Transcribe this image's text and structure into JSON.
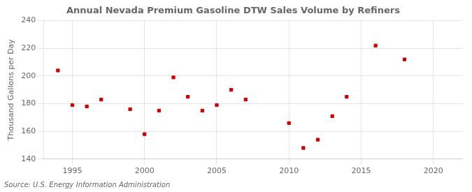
{
  "chart_data": {
    "type": "scatter",
    "title": "Annual Nevada Premium Gasoline DTW Sales Volume by Refiners",
    "y_label": "Thousand Gallons per Day",
    "annotations": [
      "Source: U.S. Energy Information Administration"
    ],
    "x": [
      1994,
      1995,
      1996,
      1997,
      1999,
      2000,
      2001,
      2002,
      2003,
      2004,
      2005,
      2006,
      2007,
      2010,
      2011,
      2012,
      2013,
      2014,
      2016,
      2018
    ],
    "values": [
      204,
      179,
      178,
      183,
      176,
      158,
      175,
      199,
      185,
      175,
      179,
      190,
      183,
      166,
      148,
      154,
      171,
      185,
      222,
      212
    ],
    "color": "#cc0000",
    "marker": "square",
    "xlim": [
      1993,
      2022
    ],
    "xticks": [
      1995,
      2000,
      2005,
      2010,
      2015,
      2020
    ],
    "ylim": [
      140,
      240
    ],
    "yticks": [
      140,
      160,
      180,
      200,
      220,
      240
    ],
    "grid": true,
    "legend": false
  }
}
